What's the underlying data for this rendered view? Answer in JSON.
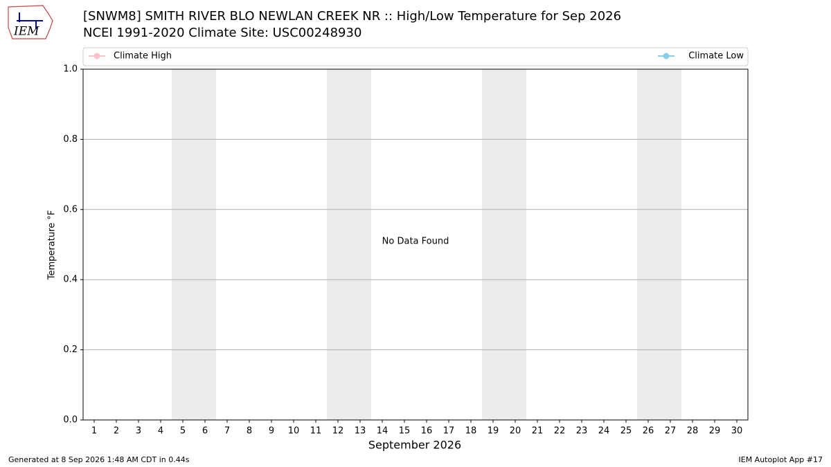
{
  "logo_text": "IEM",
  "chart_data": {
    "type": "line",
    "title": "[SNWM8] SMITH RIVER BLO NEWLAN CREEK NR :: High/Low Temperature for Sep 2026",
    "subtitle": "NCEI 1991-2020 Climate Site: USC00248930",
    "xlabel": "September 2026",
    "ylabel": "Temperature °F",
    "annotation": "No Data Found",
    "x": [
      1,
      2,
      3,
      4,
      5,
      6,
      7,
      8,
      9,
      10,
      11,
      12,
      13,
      14,
      15,
      16,
      17,
      18,
      19,
      20,
      21,
      22,
      23,
      24,
      25,
      26,
      27,
      28,
      29,
      30
    ],
    "xlim": [
      0.5,
      30.5
    ],
    "xticks": [
      1,
      2,
      3,
      4,
      5,
      6,
      7,
      8,
      9,
      10,
      11,
      12,
      13,
      14,
      15,
      16,
      17,
      18,
      19,
      20,
      21,
      22,
      23,
      24,
      25,
      26,
      27,
      28,
      29,
      30
    ],
    "ylim": [
      0,
      1
    ],
    "yticks": [
      {
        "value": 0,
        "label": "0.0"
      },
      0.2,
      0.4,
      0.6,
      0.8,
      {
        "value": 1,
        "label": "1.0"
      }
    ],
    "grid": true,
    "series": [
      {
        "name": "Climate High",
        "color": "#ffc0cb",
        "values": [
          null,
          null,
          null,
          null,
          null,
          null,
          null,
          null,
          null,
          null,
          null,
          null,
          null,
          null,
          null,
          null,
          null,
          null,
          null,
          null,
          null,
          null,
          null,
          null,
          null,
          null,
          null,
          null,
          null,
          null
        ]
      },
      {
        "name": "Climate Low",
        "color": "#87ceeb",
        "values": [
          null,
          null,
          null,
          null,
          null,
          null,
          null,
          null,
          null,
          null,
          null,
          null,
          null,
          null,
          null,
          null,
          null,
          null,
          null,
          null,
          null,
          null,
          null,
          null,
          null,
          null,
          null,
          null,
          null,
          null
        ]
      }
    ],
    "footer_left": "Generated at 8 Sep 2026 1:48 AM CDT in 0.44s",
    "footer_right": "IEM Autoplot App #17"
  }
}
